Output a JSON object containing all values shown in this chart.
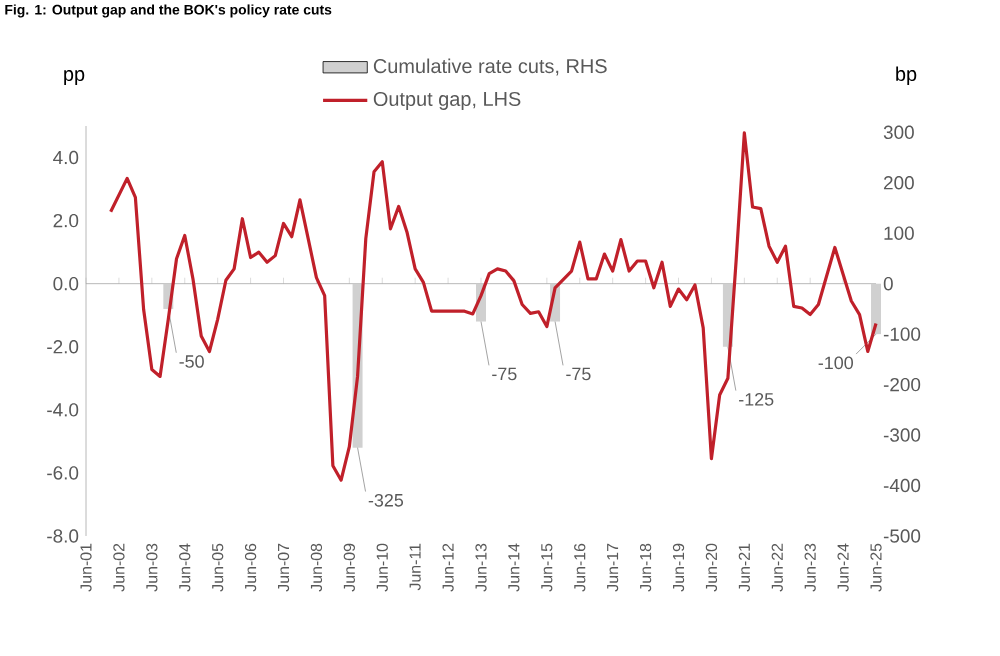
{
  "chart_data": {
    "type": "line",
    "title": "Fig. 1: Output gap and the BOK's policy rate cuts",
    "ylabel": "pp",
    "y2label": "bp",
    "legend": "top",
    "xlim": [
      "2001-06",
      "2025-06"
    ],
    "xticks": [
      {
        "value": "2001-06",
        "label": "Jun-01"
      },
      {
        "value": "2002-06",
        "label": "Jun-02"
      },
      {
        "value": "2003-06",
        "label": "Jun-03"
      },
      {
        "value": "2004-06",
        "label": "Jun-04"
      },
      {
        "value": "2005-06",
        "label": "Jun-05"
      },
      {
        "value": "2006-06",
        "label": "Jun-06"
      },
      {
        "value": "2007-06",
        "label": "Jun-07"
      },
      {
        "value": "2008-06",
        "label": "Jun-08"
      },
      {
        "value": "2009-06",
        "label": "Jun-09"
      },
      {
        "value": "2010-06",
        "label": "Jun-10"
      },
      {
        "value": "2011-06",
        "label": "Jun-11"
      },
      {
        "value": "2012-06",
        "label": "Jun-12"
      },
      {
        "value": "2013-06",
        "label": "Jun-13"
      },
      {
        "value": "2014-06",
        "label": "Jun-14"
      },
      {
        "value": "2015-06",
        "label": "Jun-15"
      },
      {
        "value": "2016-06",
        "label": "Jun-16"
      },
      {
        "value": "2017-06",
        "label": "Jun-17"
      },
      {
        "value": "2018-06",
        "label": "Jun-18"
      },
      {
        "value": "2019-06",
        "label": "Jun-19"
      },
      {
        "value": "2020-06",
        "label": "Jun-20"
      },
      {
        "value": "2021-06",
        "label": "Jun-21"
      },
      {
        "value": "2022-06",
        "label": "Jun-22"
      },
      {
        "value": "2023-06",
        "label": "Jun-23"
      },
      {
        "value": "2024-06",
        "label": "Jun-24"
      },
      {
        "value": "2025-06",
        "label": "Jun-25"
      }
    ],
    "ylim": [
      -8,
      5
    ],
    "yticks": [
      {
        "value": -8,
        "label": "-8.0"
      },
      {
        "value": -6,
        "label": "-6.0"
      },
      {
        "value": -4,
        "label": "-4.0"
      },
      {
        "value": -2,
        "label": "-2.0"
      },
      {
        "value": 0,
        "label": "0.0"
      },
      {
        "value": 2,
        "label": "2.0"
      },
      {
        "value": 4,
        "label": "4.0"
      }
    ],
    "y2lim": [
      -500,
      312.5
    ],
    "y2ticks": [
      -500,
      -400,
      -300,
      -200,
      -100,
      0,
      100,
      200,
      300
    ],
    "series": [
      {
        "name": "Cumulative rate cuts, RHS",
        "type": "bar",
        "axis": "y2",
        "color": "#d0d0d0",
        "x": [
          "2003-12",
          "2009-09",
          "2013-06",
          "2015-09",
          "2020-12",
          "2025-06"
        ],
        "values": [
          -50,
          -325,
          -75,
          -75,
          -125,
          -100
        ],
        "value_labels": [
          "-50",
          "-325",
          "-75",
          "-75",
          "-125",
          "-100"
        ]
      },
      {
        "name": "Output gap, LHS",
        "color": "#c0202a",
        "x": [
          "2002-03",
          "2002-09",
          "2002-12",
          "2003-03",
          "2003-06",
          "2003-09",
          "2003-12",
          "2004-03",
          "2004-06",
          "2004-09",
          "2004-12",
          "2005-03",
          "2005-06",
          "2005-09",
          "2005-12",
          "2006-03",
          "2006-06",
          "2006-09",
          "2006-12",
          "2007-03",
          "2007-06",
          "2007-09",
          "2007-12",
          "2008-03",
          "2008-06",
          "2008-09",
          "2008-12",
          "2009-03",
          "2009-06",
          "2009-09",
          "2009-12",
          "2010-03",
          "2010-06",
          "2010-09",
          "2010-12",
          "2011-03",
          "2011-06",
          "2011-09",
          "2011-12",
          "2012-12",
          "2013-03",
          "2013-06",
          "2013-09",
          "2013-12",
          "2014-03",
          "2014-06",
          "2014-09",
          "2014-12",
          "2015-03",
          "2015-06",
          "2015-09",
          "2016-03",
          "2016-06",
          "2016-09",
          "2016-12",
          "2017-03",
          "2017-06",
          "2017-09",
          "2017-12",
          "2018-03",
          "2018-06",
          "2018-09",
          "2018-12",
          "2019-03",
          "2019-06",
          "2019-09",
          "2019-12",
          "2020-03",
          "2020-06",
          "2020-09",
          "2020-12",
          "2021-03",
          "2021-06",
          "2021-09",
          "2021-12",
          "2022-03",
          "2022-06",
          "2022-09",
          "2022-12",
          "2023-03",
          "2023-06",
          "2023-09",
          "2024-03",
          "2024-06",
          "2024-09",
          "2024-12",
          "2025-03",
          "2025-06"
        ],
        "values": [
          2.28,
          3.34,
          2.74,
          -0.81,
          -2.72,
          -2.94,
          -1.13,
          0.79,
          1.53,
          0.15,
          -1.66,
          -2.15,
          -1.13,
          0.11,
          0.47,
          2.06,
          0.83,
          1.0,
          0.68,
          0.89,
          1.91,
          1.49,
          2.66,
          1.43,
          0.19,
          -0.38,
          -5.77,
          -6.23,
          -5.17,
          -2.94,
          1.43,
          3.55,
          3.87,
          1.74,
          2.45,
          1.64,
          0.47,
          0.04,
          -0.87,
          -0.87,
          -0.96,
          -0.38,
          0.32,
          0.47,
          0.4,
          0.09,
          -0.66,
          -0.94,
          -0.89,
          -1.36,
          -0.13,
          0.4,
          1.32,
          0.15,
          0.15,
          0.94,
          0.4,
          1.4,
          0.4,
          0.72,
          0.72,
          -0.13,
          0.68,
          -0.72,
          -0.17,
          -0.51,
          -0.04,
          -1.4,
          -5.55,
          -3.53,
          -3.0,
          0.72,
          4.78,
          2.43,
          2.38,
          1.19,
          0.68,
          1.19,
          -0.72,
          -0.77,
          -0.98,
          -0.66,
          1.15,
          0.3,
          -0.55,
          -0.98,
          -2.15,
          -1.26
        ]
      }
    ]
  }
}
